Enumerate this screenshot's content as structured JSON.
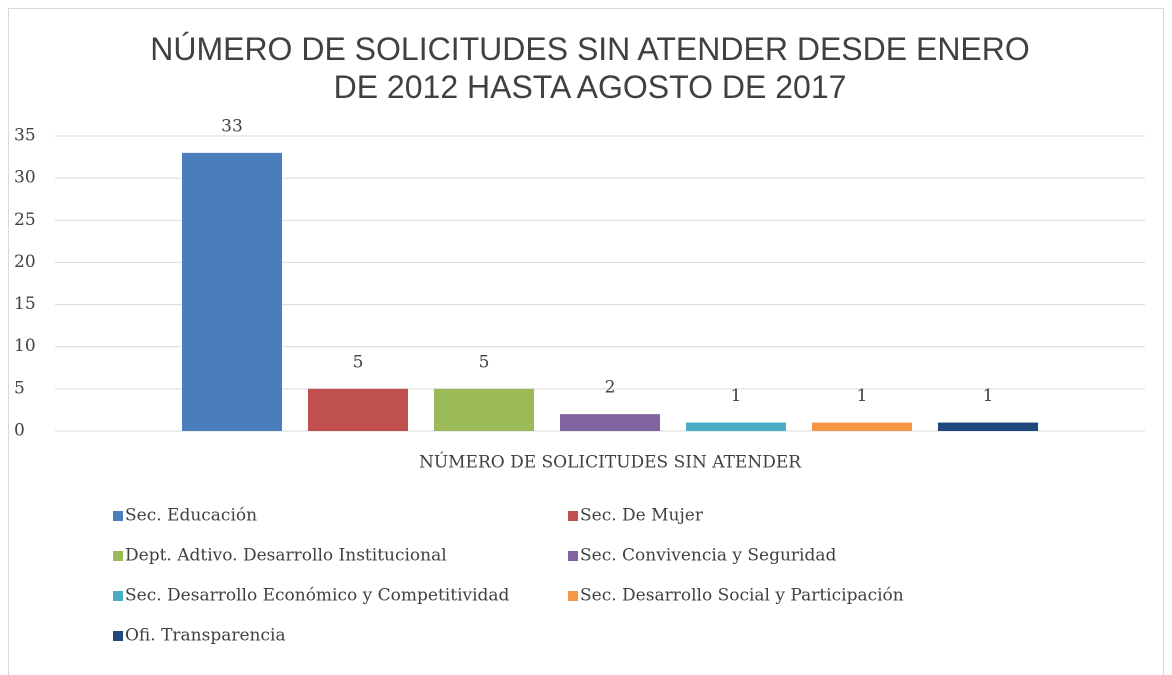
{
  "chart_data": {
    "type": "bar",
    "title": "NÚMERO DE SOLICITUDES SIN ATENDER DESDE ENERO DE 2012 HASTA AGOSTO DE 2017",
    "categories": [
      "NÚMERO DE SOLICITUDES SIN ATENDER"
    ],
    "series": [
      {
        "name": "Sec. Educación",
        "color": "#4a7ebb",
        "values": [
          33
        ]
      },
      {
        "name": "Sec. De Mujer",
        "color": "#c0504d",
        "values": [
          5
        ]
      },
      {
        "name": "Dept. Adtivo. Desarrollo Institucional",
        "color": "#9bbb59",
        "values": [
          5
        ]
      },
      {
        "name": "Sec. Convivencia y Seguridad",
        "color": "#8064a2",
        "values": [
          2
        ]
      },
      {
        "name": "Sec. Desarrollo Económico y Competitividad",
        "color": "#4bacc6",
        "values": [
          1
        ]
      },
      {
        "name": "Sec. Desarrollo Social y Participación",
        "color": "#f79646",
        "values": [
          1
        ]
      },
      {
        "name": "Ofi. Transparencia",
        "color": "#1f497d",
        "values": [
          1
        ]
      }
    ],
    "ylim": [
      0,
      35
    ],
    "yticks": [
      0,
      5,
      10,
      15,
      20,
      25,
      30,
      35
    ],
    "grid": true,
    "legend": "bottom"
  }
}
